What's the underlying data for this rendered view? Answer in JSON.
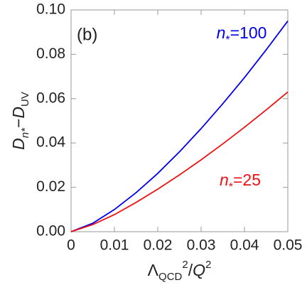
{
  "chart_data": {
    "type": "line",
    "panel_label": "(b)",
    "xlabel": [
      {
        "text": "Λ",
        "pos": "base",
        "italic": false
      },
      {
        "text": "QCD",
        "pos": "sub",
        "italic": false
      },
      {
        "text": "2",
        "pos": "sup",
        "italic": false
      },
      {
        "text": "/",
        "pos": "base",
        "italic": false
      },
      {
        "text": "Q",
        "pos": "base",
        "italic": true
      },
      {
        "text": "2",
        "pos": "sup",
        "italic": false
      }
    ],
    "ylabel": [
      {
        "text": "D",
        "pos": "base",
        "italic": true
      },
      {
        "text": "n*",
        "pos": "sub",
        "italic": true
      },
      {
        "text": "−",
        "pos": "base",
        "italic": false
      },
      {
        "text": "D",
        "pos": "base",
        "italic": true
      },
      {
        "text": "UV",
        "pos": "sub",
        "italic": false
      }
    ],
    "x": [
      0,
      0.005,
      0.01,
      0.015,
      0.02,
      0.025,
      0.03,
      0.035,
      0.04,
      0.045,
      0.05
    ],
    "series": [
      {
        "name": "n*=100",
        "color": "#0000ee",
        "values": [
          0,
          0.0038,
          0.01,
          0.0176,
          0.0263,
          0.036,
          0.0465,
          0.0577,
          0.0695,
          0.082,
          0.095
        ]
      },
      {
        "name": "n*=25",
        "color": "#ee1111",
        "values": [
          0,
          0.0032,
          0.0077,
          0.0132,
          0.0192,
          0.0256,
          0.0324,
          0.0396,
          0.0471,
          0.0549,
          0.063
        ]
      }
    ],
    "xlim": [
      0,
      0.05
    ],
    "xticks": [
      0,
      0.01,
      0.02,
      0.03,
      0.04,
      0.05
    ],
    "ylim": [
      0,
      0.1
    ],
    "yticks": [
      {
        "value": 0,
        "label": "0.00"
      },
      {
        "value": 0.02,
        "label": "0.02"
      },
      {
        "value": 0.04,
        "label": "0.04"
      },
      {
        "value": 0.06,
        "label": "0.06"
      },
      {
        "value": 0.08,
        "label": "0.08"
      },
      {
        "value": 0.1,
        "label": "0.10"
      }
    ]
  }
}
